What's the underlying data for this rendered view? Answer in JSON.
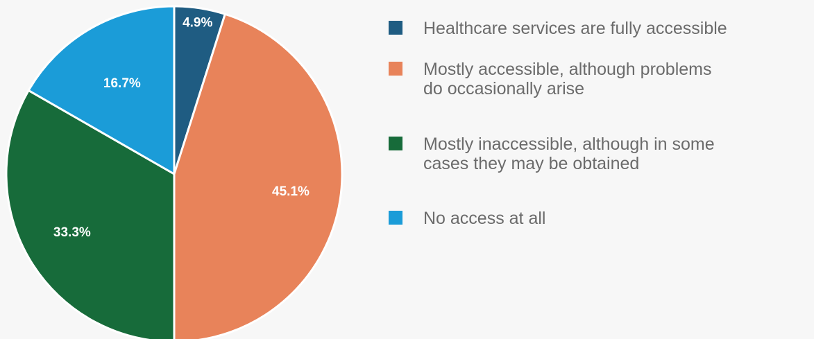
{
  "chart_data": {
    "type": "pie",
    "slices": [
      {
        "label": "Healthcare services are fully accessible",
        "value": 4.9,
        "display": "4.9%",
        "color": "#1f5c82"
      },
      {
        "label": "Mostly accessible, although problems\ndo occasionally arise",
        "value": 45.1,
        "display": "45.1%",
        "color": "#e8835a"
      },
      {
        "label": "Mostly inaccessible, although in some\ncases they may be obtained",
        "value": 33.3,
        "display": "33.3%",
        "color": "#176b3a"
      },
      {
        "label": "No access at all",
        "value": 16.7,
        "display": "16.7%",
        "color": "#1b9cd8"
      }
    ],
    "legend_position": "right"
  }
}
